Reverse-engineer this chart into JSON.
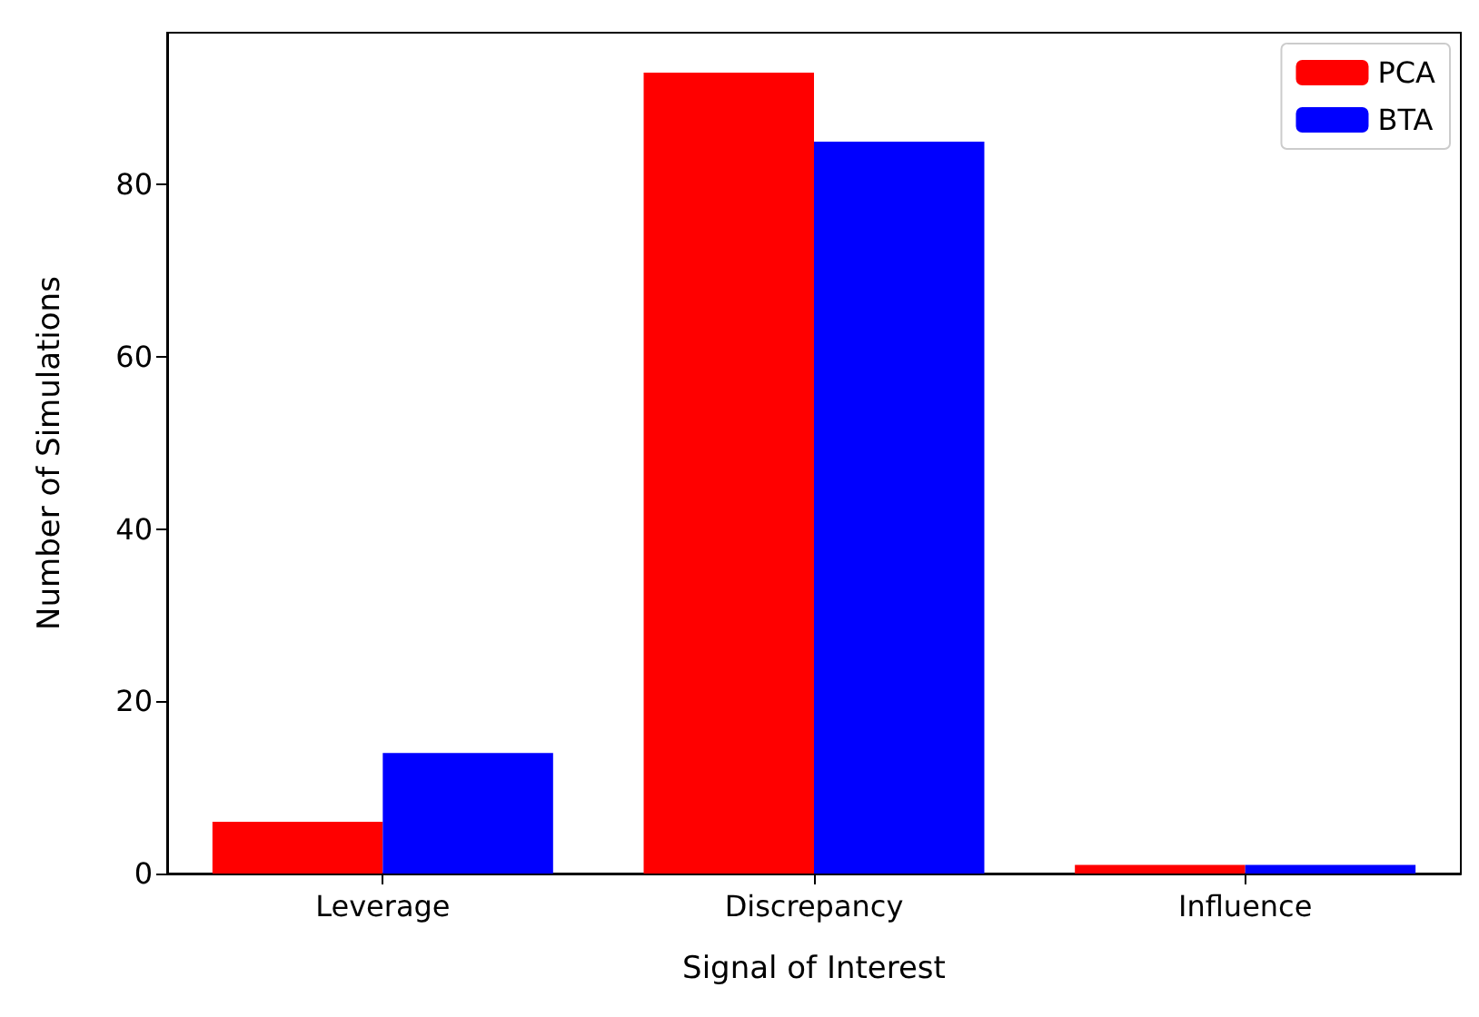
{
  "chart_data": {
    "type": "bar",
    "xlabel": "Signal of Interest",
    "ylabel": "Number of Simulations",
    "categories": [
      "Leverage",
      "Discrepancy",
      "Influence"
    ],
    "series": [
      {
        "name": "PCA",
        "color": "#ff0000",
        "values": [
          6,
          93,
          1
        ]
      },
      {
        "name": "BTA",
        "color": "#0000ff",
        "values": [
          14,
          85,
          1
        ]
      }
    ],
    "ylim": [
      0,
      97.65
    ],
    "yticks": [
      0,
      20,
      40,
      60,
      80
    ],
    "grid": false,
    "legend": "top right"
  }
}
